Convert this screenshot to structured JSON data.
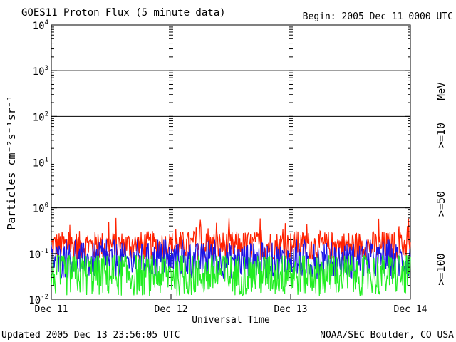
{
  "chart_data": {
    "type": "line",
    "title": "GOES11 Proton Flux (5 minute data)",
    "begin_label": "Begin: 2005 Dec 11 0000 UTC",
    "ylabel": "Particles cm⁻²s⁻¹sr⁻¹",
    "xlabel": "Universal Time",
    "updated_label": "Updated 2005 Dec 13 23:56:05 UTC",
    "credit_label": "NOAA/SEC Boulder, CO USA",
    "unit_label": "MeV",
    "y_scale": "log",
    "ylim": [
      0.01,
      10000
    ],
    "y_ticks": [
      {
        "value": 10000,
        "base": "10",
        "exp": "4"
      },
      {
        "value": 1000,
        "base": "10",
        "exp": "3"
      },
      {
        "value": 100,
        "base": "10",
        "exp": "2"
      },
      {
        "value": 10,
        "base": "10",
        "exp": "1"
      },
      {
        "value": 1,
        "base": "10",
        "exp": "0"
      },
      {
        "value": 0.1,
        "base": "10",
        "exp": "-1"
      },
      {
        "value": 0.01,
        "base": "10",
        "exp": "-2"
      }
    ],
    "x_ticks": [
      "Dec 11",
      "Dec 12",
      "Dec 13",
      "Dec 14"
    ],
    "xlim_days": [
      0,
      3
    ],
    "solid_reference_lines": [
      1000,
      100,
      1
    ],
    "dashed_reference_lines": [
      10
    ],
    "series": [
      {
        "name": ">=10",
        "color": "#ff2200",
        "baseline": 0.15,
        "spread": 0.2,
        "peak_max": 0.6
      },
      {
        "name": ">=50",
        "color": "#1a14e6",
        "baseline": 0.07,
        "spread": 0.25,
        "peak_max": 0.2
      },
      {
        "name": ">=100",
        "color": "#22ee22",
        "baseline": 0.035,
        "spread": 0.3,
        "peak_max": 0.09
      }
    ]
  }
}
